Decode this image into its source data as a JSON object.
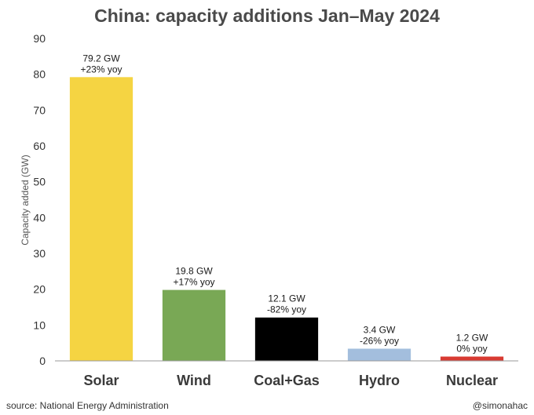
{
  "chart_data": {
    "type": "bar",
    "title": "China: capacity additions Jan–May 2024",
    "ylabel": "Capacity added (GW)",
    "xlabel": "",
    "ylim": [
      0,
      90
    ],
    "yticks": [
      0,
      10,
      20,
      30,
      40,
      50,
      60,
      70,
      80,
      90
    ],
    "grid": false,
    "categories": [
      "Solar",
      "Wind",
      "Coal+Gas",
      "Hydro",
      "Nuclear"
    ],
    "values": [
      79.2,
      19.8,
      12.1,
      3.4,
      1.2
    ],
    "value_labels": [
      "79.2 GW",
      "19.8 GW",
      "12.1 GW",
      "3.4 GW",
      "1.2 GW"
    ],
    "change_labels": [
      "+23% yoy",
      "+17% yoy",
      "-82% yoy",
      "-26% yoy",
      "0% yoy"
    ],
    "colors": [
      "#f5d442",
      "#79a855",
      "#000000",
      "#a3bedd",
      "#d83a32"
    ]
  },
  "footer": {
    "source": "source: National Energy Administration",
    "credit": "@simonahac"
  }
}
